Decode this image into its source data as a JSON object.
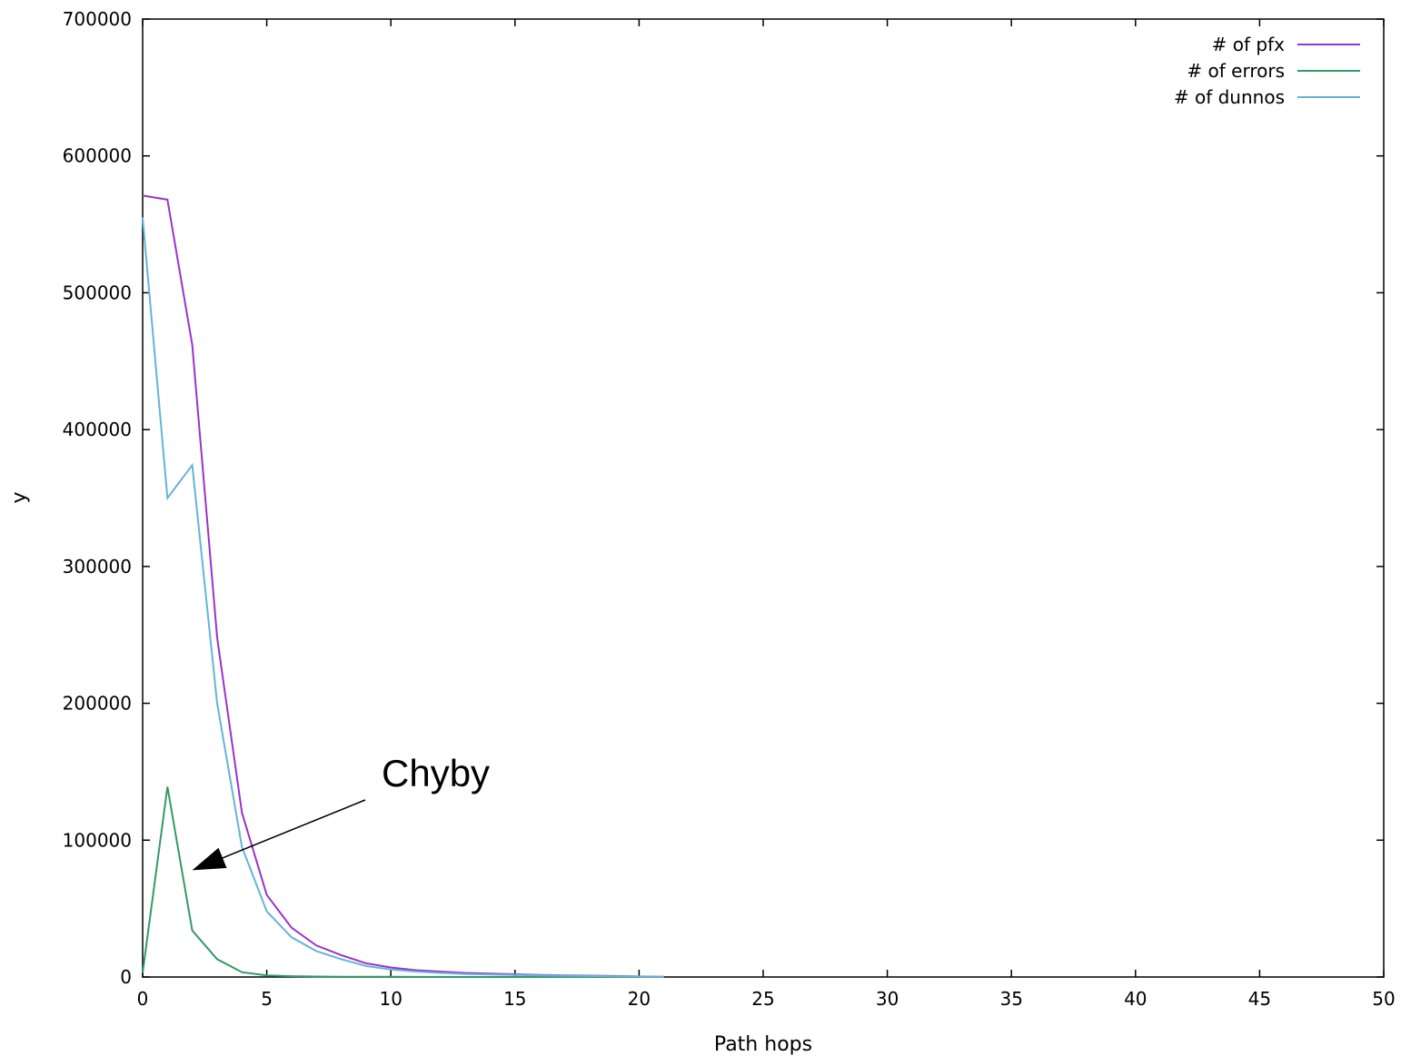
{
  "chart_data": {
    "type": "line",
    "xlabel": "Path hops",
    "ylabel": "y",
    "xlim": [
      0,
      50
    ],
    "ylim": [
      0,
      700000
    ],
    "x_ticks": [
      0,
      5,
      10,
      15,
      20,
      25,
      30,
      35,
      40,
      45,
      50
    ],
    "y_ticks": [
      0,
      100000,
      200000,
      300000,
      400000,
      500000,
      600000,
      700000
    ],
    "grid": false,
    "legend_position": "top-right",
    "series": [
      {
        "name": "# of pfx",
        "color": "#9933cc",
        "x": [
          0,
          1,
          2,
          3,
          4,
          5,
          6,
          7,
          8,
          9,
          10,
          11,
          12,
          13,
          14,
          15,
          16,
          17,
          18,
          19,
          20,
          21
        ],
        "y": [
          571000,
          568000,
          462000,
          248000,
          120000,
          60000,
          36000,
          23000,
          16000,
          10000,
          7000,
          5000,
          4000,
          3000,
          2500,
          2000,
          1500,
          1200,
          1000,
          700,
          400,
          200
        ]
      },
      {
        "name": "# of errors",
        "color": "#339966",
        "x": [
          0,
          1,
          2,
          3,
          4,
          5,
          6,
          7,
          8,
          9,
          10,
          11,
          12,
          13,
          14,
          15,
          16,
          17,
          18,
          19,
          20
        ],
        "y": [
          3000,
          139000,
          34000,
          13000,
          3500,
          1200,
          600,
          300,
          200,
          100,
          100,
          50,
          50,
          30,
          20,
          10,
          10,
          5,
          5,
          2,
          0
        ]
      },
      {
        "name": "# of dunnos",
        "color": "#66b3d9",
        "x": [
          0,
          1,
          2,
          3,
          4,
          5,
          6,
          7,
          8,
          9,
          10,
          11,
          12,
          13,
          14,
          15,
          16,
          17,
          18,
          19,
          20,
          21
        ],
        "y": [
          555000,
          350000,
          374000,
          200000,
          95000,
          48000,
          29000,
          19000,
          13000,
          8000,
          5500,
          4000,
          3000,
          2200,
          1800,
          1500,
          1100,
          900,
          700,
          500,
          300,
          150
        ]
      }
    ],
    "annotations": [
      {
        "text": "Chyby",
        "arrow_to": {
          "x": 2,
          "y": 78000
        }
      }
    ]
  }
}
